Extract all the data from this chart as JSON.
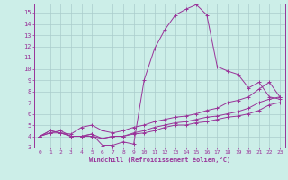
{
  "xlabel": "Windchill (Refroidissement éolien,°C)",
  "bg_color": "#cceee8",
  "grid_color": "#aacccc",
  "line_color": "#993399",
  "spine_color": "#993399",
  "xlim": [
    -0.5,
    23.5
  ],
  "ylim": [
    3,
    15.8
  ],
  "xticks": [
    0,
    1,
    2,
    3,
    4,
    5,
    6,
    7,
    8,
    9,
    10,
    11,
    12,
    13,
    14,
    15,
    16,
    17,
    18,
    19,
    20,
    21,
    22,
    23
  ],
  "yticks": [
    3,
    4,
    5,
    6,
    7,
    8,
    9,
    10,
    11,
    12,
    13,
    14,
    15
  ],
  "series": [
    [
      4.0,
      4.5,
      4.3,
      4.0,
      4.0,
      4.2,
      3.2,
      3.2,
      3.5,
      3.3,
      9.0,
      11.8,
      13.5,
      14.8,
      15.3,
      15.7,
      14.8,
      10.2,
      9.8,
      9.5,
      8.3,
      8.8,
      7.5,
      7.3
    ],
    [
      4.0,
      4.5,
      4.3,
      4.2,
      4.8,
      5.0,
      4.5,
      4.3,
      4.5,
      4.8,
      5.0,
      5.3,
      5.5,
      5.7,
      5.8,
      6.0,
      6.3,
      6.5,
      7.0,
      7.2,
      7.5,
      8.2,
      8.8,
      7.5
    ],
    [
      4.0,
      4.3,
      4.5,
      4.0,
      4.0,
      4.2,
      3.8,
      4.0,
      4.0,
      4.3,
      4.5,
      4.8,
      5.0,
      5.2,
      5.3,
      5.5,
      5.7,
      5.8,
      6.0,
      6.2,
      6.5,
      7.0,
      7.3,
      7.5
    ],
    [
      4.0,
      4.3,
      4.3,
      4.0,
      4.0,
      4.0,
      3.8,
      4.0,
      4.0,
      4.2,
      4.3,
      4.5,
      4.8,
      5.0,
      5.0,
      5.2,
      5.3,
      5.5,
      5.7,
      5.8,
      6.0,
      6.3,
      6.8,
      7.0
    ]
  ]
}
